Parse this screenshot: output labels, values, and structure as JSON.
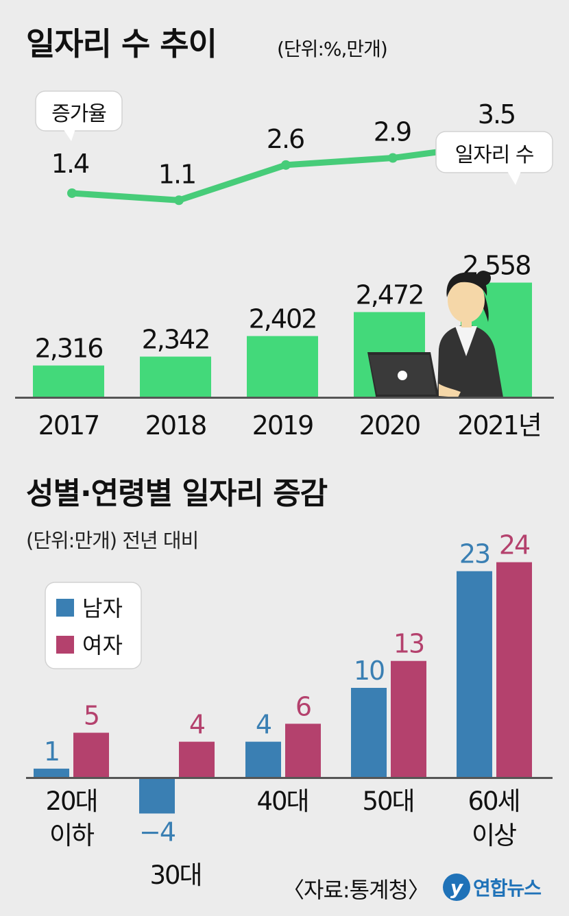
{
  "chart1": {
    "title": "일자리 수 추이",
    "unit": "(단위:%,만개)",
    "callout_rate": "증가율",
    "callout_jobs": "일자리 수",
    "year_suffix": "년"
  },
  "chart2": {
    "title": "성별·연령별 일자리 증감",
    "unit": "(단위:만개) 전년 대비"
  },
  "footer": {
    "source": "〈자료:통계청〉",
    "logo_text": "연합뉴스",
    "logo_mark": "y"
  },
  "colors": {
    "background": "#ececec",
    "green_bar": "#43d97a",
    "green_line": "#47cc79",
    "male": "#3a7fb3",
    "female": "#b4416d",
    "logo": "#1f72b8"
  },
  "chart_data": [
    {
      "type": "bar",
      "categories": [
        "2017",
        "2018",
        "2019",
        "2020",
        "2021"
      ],
      "series": [
        {
          "name": "일자리 수",
          "values": [
            2316,
            2342,
            2402,
            2472,
            2558
          ]
        }
      ],
      "value_labels": [
        "2,316",
        "2,342",
        "2,402",
        "2,472",
        "2,558"
      ],
      "line_series": {
        "name": "증가율",
        "values": [
          1.4,
          1.1,
          2.6,
          2.9,
          3.5
        ]
      }
    },
    {
      "type": "bar",
      "categories": [
        [
          "20대",
          "이하"
        ],
        [
          "30대"
        ],
        [
          "40대"
        ],
        [
          "50대"
        ],
        [
          "60세",
          "이상"
        ]
      ],
      "series": [
        {
          "name": "남자",
          "values": [
            1,
            -4,
            4,
            10,
            23
          ]
        },
        {
          "name": "여자",
          "values": [
            5,
            4,
            6,
            13,
            24
          ]
        }
      ],
      "value_labels": {
        "male": [
          "1",
          "−4",
          "4",
          "10",
          "23"
        ],
        "female": [
          "5",
          "4",
          "6",
          "13",
          "24"
        ]
      },
      "legend": "top-left"
    }
  ]
}
